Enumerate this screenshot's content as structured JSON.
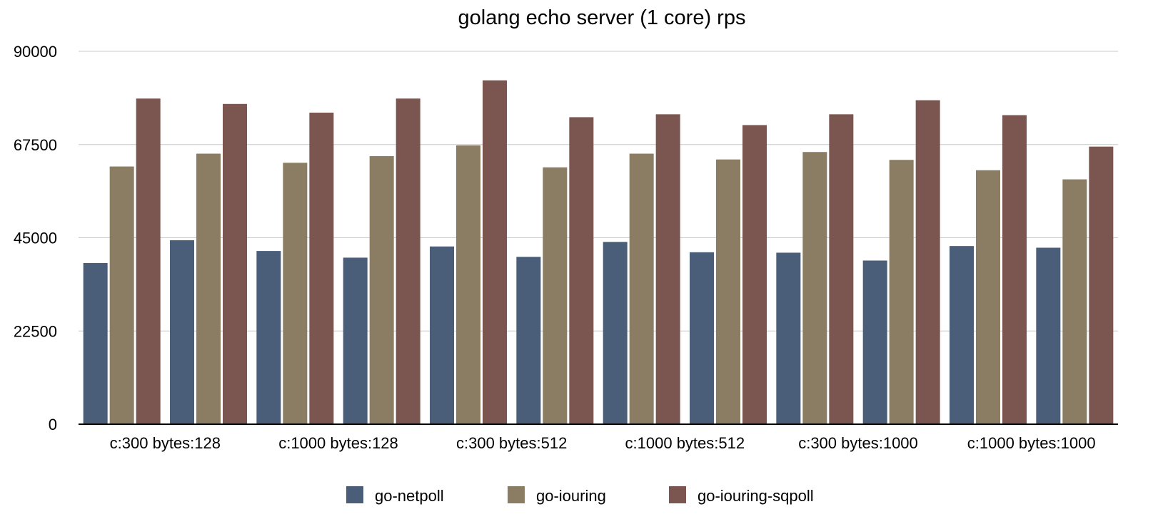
{
  "chart_data": {
    "type": "bar",
    "title": "golang echo server (1 core) rps",
    "xlabel": "",
    "ylabel": "",
    "ylim": [
      0,
      90000
    ],
    "yticks": [
      0,
      22500,
      45000,
      67500,
      90000
    ],
    "grid": true,
    "legend_position": "bottom",
    "categories": [
      "c:300 bytes:128",
      "",
      "c:1000 bytes:128",
      "",
      "c:300 bytes:512",
      "",
      "c:1000 bytes:512",
      "",
      "c:300 bytes:1000",
      "",
      "c:1000 bytes:1000",
      ""
    ],
    "series": [
      {
        "name": "go-netpoll",
        "color": "#4a5e7a",
        "values": [
          38900,
          44400,
          41800,
          40200,
          42900,
          40400,
          44000,
          41500,
          41400,
          39500,
          43000,
          42600
        ]
      },
      {
        "name": "go-iouring",
        "color": "#8b7d63",
        "values": [
          62200,
          65300,
          63100,
          64700,
          67300,
          62000,
          65300,
          63900,
          65700,
          63800,
          61300,
          59100
        ]
      },
      {
        "name": "go-iouring-sqpoll",
        "color": "#7b554f",
        "values": [
          78600,
          77300,
          75200,
          78600,
          83000,
          74100,
          74800,
          72200,
          74800,
          78200,
          74600,
          67000
        ]
      }
    ]
  }
}
